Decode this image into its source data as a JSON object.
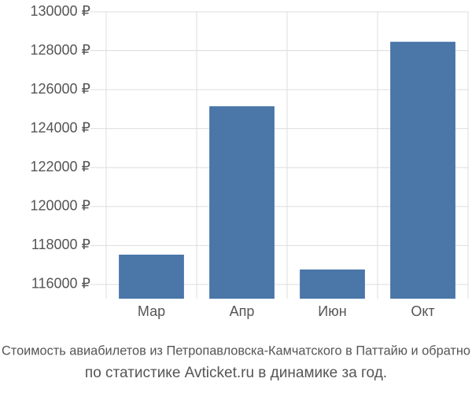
{
  "chart_data": {
    "type": "bar",
    "title": "Стоимость авиабилетов из Петропавловска-Камчатского в Паттайю и обратно",
    "subtitle": "по статистике Avticket.ru в динамике за год.",
    "categories": [
      "Мар",
      "Апр",
      "Июн",
      "Окт"
    ],
    "values": [
      117530,
      125150,
      116770,
      128460
    ],
    "color": "#4a76a8",
    "ylim": [
      115270,
      130000
    ],
    "yticks": [
      {
        "value": 116000,
        "label": "116000 ₽"
      },
      {
        "value": 118000,
        "label": "118000 ₽"
      },
      {
        "value": 120000,
        "label": "120000 ₽"
      },
      {
        "value": 122000,
        "label": "122000 ₽"
      },
      {
        "value": 124000,
        "label": "124000 ₽"
      },
      {
        "value": 126000,
        "label": "126000 ₽"
      },
      {
        "value": 128000,
        "label": "128000 ₽"
      },
      {
        "value": 130000,
        "label": "130000 ₽"
      }
    ],
    "grid": true
  }
}
